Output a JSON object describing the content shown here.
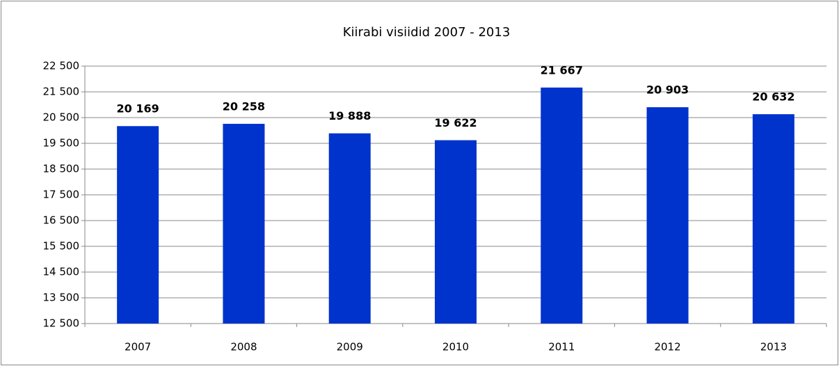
{
  "chart_data": {
    "type": "bar",
    "title": "Kiirabi visiidid 2007  - 2013",
    "categories": [
      "2007",
      "2008",
      "2009",
      "2010",
      "2011",
      "2012",
      "2013"
    ],
    "values": [
      20169,
      20258,
      19888,
      19622,
      21667,
      20903,
      20632
    ],
    "value_labels": [
      "20 169",
      "20 258",
      "19 888",
      "19 622",
      "21 667",
      "20 903",
      "20 632"
    ],
    "color": "#0033cc",
    "ylim": [
      12500,
      22500
    ],
    "yticks": [
      {
        "value": 12500,
        "label": "12 500"
      },
      {
        "value": 13500,
        "label": "13 500"
      },
      {
        "value": 14500,
        "label": "14 500"
      },
      {
        "value": 15500,
        "label": "15 500"
      },
      {
        "value": 16500,
        "label": "16 500"
      },
      {
        "value": 17500,
        "label": "17 500"
      },
      {
        "value": 18500,
        "label": "18 500"
      },
      {
        "value": 19500,
        "label": "19 500"
      },
      {
        "value": 20500,
        "label": "20 500"
      },
      {
        "value": 21500,
        "label": "21 500"
      },
      {
        "value": 22500,
        "label": "22 500"
      }
    ],
    "grid": true
  }
}
